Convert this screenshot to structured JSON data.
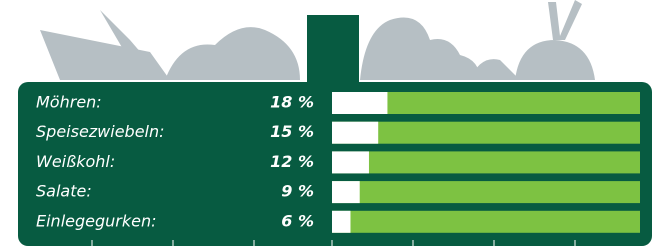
{
  "chart_data": {
    "type": "bar",
    "categories": [
      "Möhren:",
      "Speisezwiebeln:",
      "Weißkohl:",
      "Salate:",
      "Einlegegurken:"
    ],
    "values": [
      18,
      15,
      12,
      9,
      6
    ],
    "value_labels": [
      "18 %",
      "15 %",
      "12 %",
      "9 %",
      "6 %"
    ],
    "xlim": [
      0,
      100
    ],
    "color": "#ffffff",
    "track_color": "#7dc242"
  }
}
